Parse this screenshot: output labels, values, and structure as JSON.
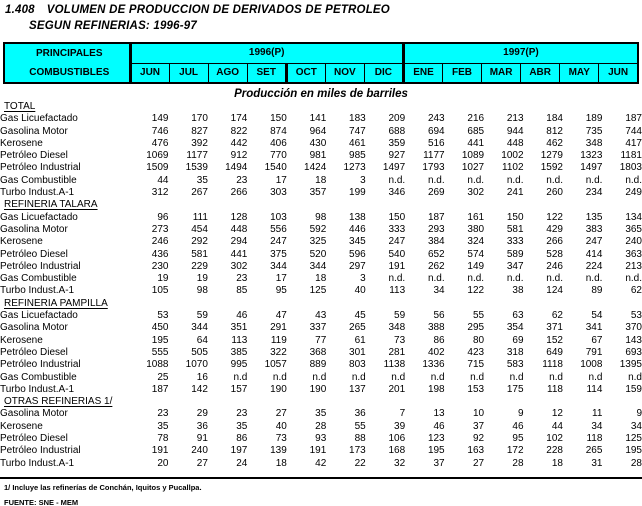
{
  "title": {
    "number": "1.408",
    "line1": "VOLUMEN DE PRODUCCION DE DERIVADOS DE PETROLEO",
    "line2": "SEGUN REFINERIAS: 1996-97"
  },
  "subtitle": "Producción en miles de barriles",
  "header": {
    "corner_line1": "PRINCIPALES",
    "corner_line2": "COMBUSTIBLES",
    "year_groups": [
      {
        "label": "1996(P)",
        "months": [
          "JUN",
          "JUL",
          "AGO",
          "SET",
          "OCT",
          "NOV",
          "DIC"
        ]
      },
      {
        "label": "1997(P)",
        "months": [
          "ENE",
          "FEB",
          "MAR",
          "ABR",
          "MAY",
          "JUN"
        ]
      }
    ]
  },
  "sections": [
    {
      "name": "TOTAL",
      "rows": [
        {
          "label": "Gas Licuefactado",
          "values": [
            149,
            170,
            174,
            150,
            141,
            183,
            209,
            243,
            216,
            213,
            184,
            189,
            187
          ]
        },
        {
          "label": "Gasolina Motor",
          "values": [
            746,
            827,
            822,
            874,
            964,
            747,
            688,
            694,
            685,
            944,
            812,
            735,
            744
          ]
        },
        {
          "label": "Kerosene",
          "values": [
            476,
            392,
            442,
            406,
            430,
            461,
            359,
            516,
            441,
            448,
            462,
            348,
            417
          ]
        },
        {
          "label": "Petróleo Diesel",
          "values": [
            1069,
            1177,
            912,
            770,
            981,
            985,
            927,
            1177,
            1089,
            1002,
            1279,
            1323,
            1181
          ]
        },
        {
          "label": "Petróleo Industrial",
          "values": [
            1509,
            1539,
            1494,
            1540,
            1424,
            1273,
            1497,
            1793,
            1027,
            1102,
            1592,
            1497,
            1803
          ]
        },
        {
          "label": "Gas Combustible",
          "values": [
            44,
            35,
            23,
            17,
            18,
            3,
            "n.d.",
            "n.d.",
            "n.d.",
            "n.d.",
            "n.d.",
            "n.d.",
            "n.d."
          ]
        },
        {
          "label": "Turbo Indust.A-1",
          "values": [
            312,
            267,
            266,
            303,
            357,
            199,
            346,
            269,
            302,
            241,
            260,
            234,
            249
          ]
        }
      ]
    },
    {
      "name": "REFINERIA TALARA",
      "rows": [
        {
          "label": "Gas Licuefactado",
          "values": [
            96,
            111,
            128,
            103,
            98,
            138,
            150,
            187,
            161,
            150,
            122,
            135,
            134
          ]
        },
        {
          "label": "Gasolina Motor",
          "values": [
            273,
            454,
            448,
            556,
            592,
            446,
            333,
            293,
            380,
            581,
            429,
            383,
            365
          ]
        },
        {
          "label": "Kerosene",
          "values": [
            246,
            292,
            294,
            247,
            325,
            345,
            247,
            384,
            324,
            333,
            266,
            247,
            240
          ]
        },
        {
          "label": "Petróleo Diesel",
          "values": [
            436,
            581,
            441,
            375,
            520,
            596,
            540,
            652,
            574,
            589,
            528,
            414,
            363
          ]
        },
        {
          "label": "Petróleo Industrial",
          "values": [
            230,
            229,
            302,
            344,
            344,
            297,
            191,
            262,
            149,
            347,
            246,
            224,
            213
          ]
        },
        {
          "label": "Gas Combustible",
          "values": [
            19,
            19,
            23,
            17,
            18,
            3,
            "n.d.",
            "n.d.",
            "n.d.",
            "n.d.",
            "n.d.",
            "n.d.",
            "n.d."
          ]
        },
        {
          "label": "Turbo Indust.A-1",
          "values": [
            105,
            98,
            85,
            95,
            125,
            40,
            113,
            34,
            122,
            38,
            124,
            89,
            62
          ]
        }
      ]
    },
    {
      "name": "REFINERIA PAMPILLA",
      "rows": [
        {
          "label": "Gas Licuefactado",
          "values": [
            53,
            59,
            46,
            47,
            43,
            45,
            59,
            56,
            55,
            63,
            62,
            54,
            53
          ]
        },
        {
          "label": "Gasolina Motor",
          "values": [
            450,
            344,
            351,
            291,
            337,
            265,
            348,
            388,
            295,
            354,
            371,
            341,
            370
          ]
        },
        {
          "label": "Kerosene",
          "values": [
            195,
            64,
            113,
            119,
            77,
            61,
            73,
            86,
            80,
            69,
            152,
            67,
            143
          ]
        },
        {
          "label": "Petróleo Diesel",
          "values": [
            555,
            505,
            385,
            322,
            368,
            301,
            281,
            402,
            423,
            318,
            649,
            791,
            693
          ]
        },
        {
          "label": "Petróleo Industrial",
          "values": [
            1088,
            1070,
            995,
            1057,
            889,
            803,
            1138,
            1336,
            715,
            583,
            1118,
            1008,
            1395
          ]
        },
        {
          "label": "Gas Combustible",
          "values": [
            25,
            16,
            "n.d",
            "n.d",
            "n.d",
            "n.d",
            "n.d",
            "n.d",
            "n.d",
            "n.d",
            "n.d",
            "n.d",
            "n.d"
          ]
        },
        {
          "label": "Turbo Indust.A-1",
          "values": [
            187,
            142,
            157,
            190,
            190,
            137,
            201,
            198,
            153,
            175,
            118,
            114,
            159
          ]
        }
      ]
    },
    {
      "name": "OTRAS REFINERIAS 1/",
      "rows": [
        {
          "label": "Gasolina Motor",
          "values": [
            23,
            29,
            23,
            27,
            35,
            36,
            7,
            13,
            10,
            9,
            12,
            11,
            9
          ]
        },
        {
          "label": "Kerosene",
          "values": [
            35,
            36,
            35,
            40,
            28,
            55,
            39,
            46,
            37,
            46,
            44,
            34,
            34
          ]
        },
        {
          "label": "Petróleo Diesel",
          "values": [
            78,
            91,
            86,
            73,
            93,
            88,
            106,
            123,
            92,
            95,
            102,
            118,
            125
          ]
        },
        {
          "label": "Petróleo Industrial",
          "values": [
            191,
            240,
            197,
            139,
            191,
            173,
            168,
            195,
            163,
            172,
            228,
            265,
            195
          ]
        },
        {
          "label": "Turbo Indust.A-1",
          "values": [
            20,
            27,
            24,
            18,
            42,
            22,
            32,
            37,
            27,
            28,
            18,
            31,
            28
          ]
        }
      ]
    }
  ],
  "footnote": "1/ Incluye las refinerías de Conchán, Iquitos y Pucallpa.",
  "source": "FUENTE: SNE - MEM",
  "colors": {
    "header_bg": "#00ffff",
    "border": "#000000",
    "text": "#000000",
    "background": "#ffffff"
  }
}
